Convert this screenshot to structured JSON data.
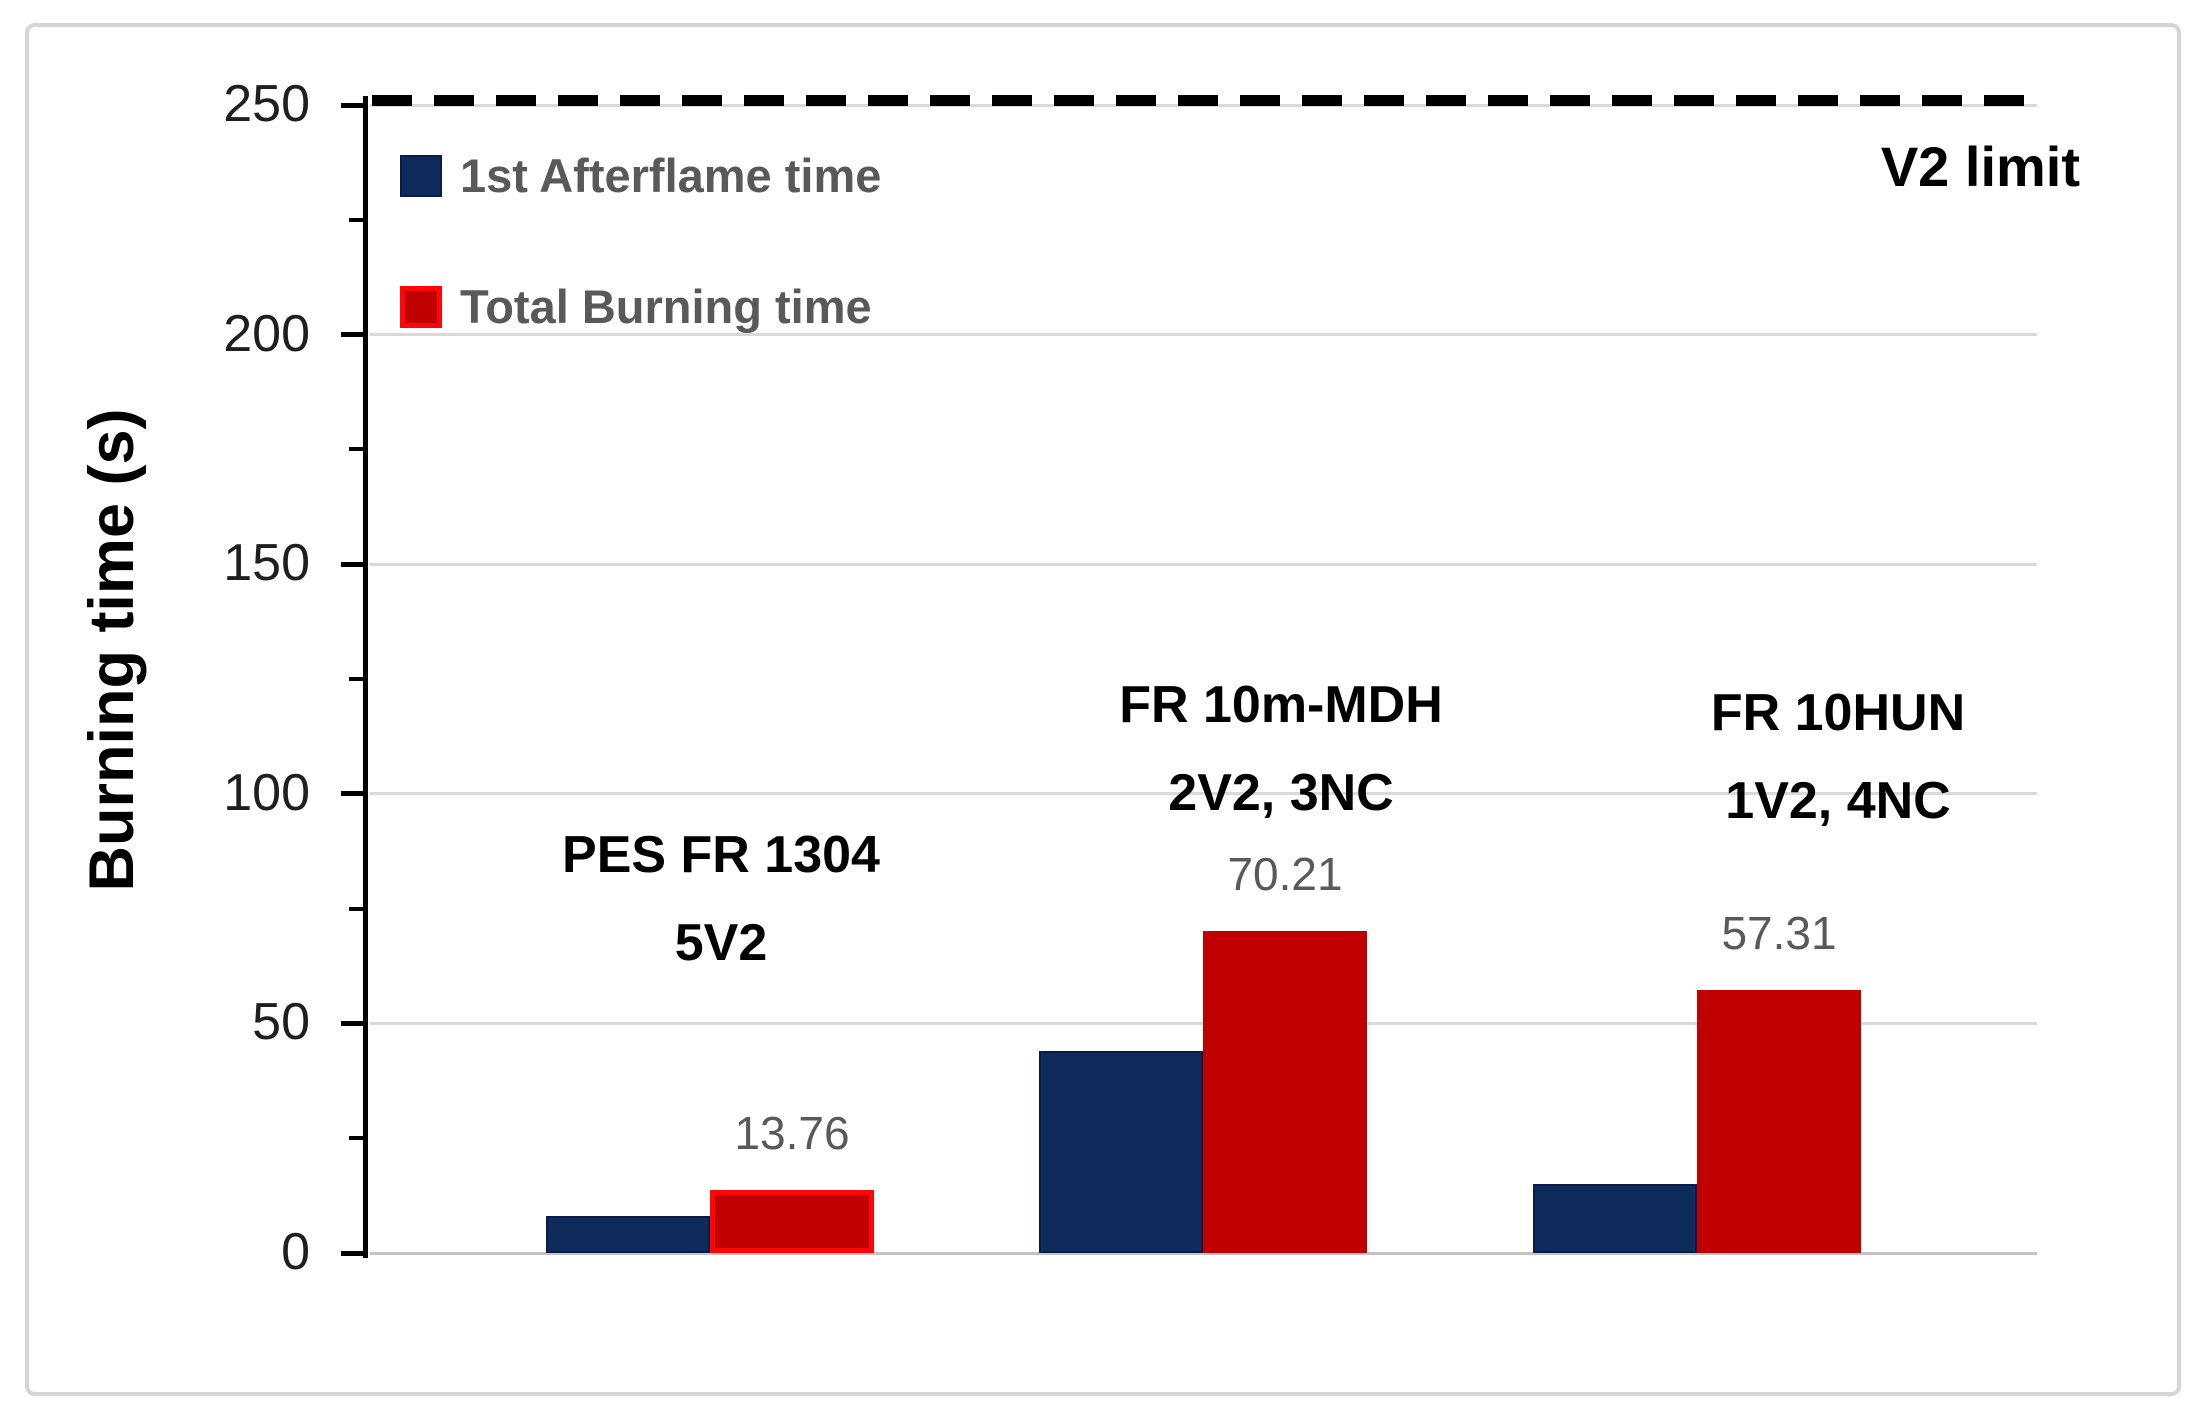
{
  "figure": {
    "background": "#ffffff",
    "frame_border_color": "#d5d5d5"
  },
  "chart_data": {
    "type": "bar",
    "title": "",
    "xlabel": "",
    "ylabel": "Burning time (s)",
    "ylim": [
      0,
      250
    ],
    "ytick_interval": 50,
    "minor_tick_interval": 25,
    "grid": "horizontal-major",
    "legend_position": "top-left-inside",
    "yticks": [
      "0",
      "50",
      "100",
      "150",
      "200",
      "250"
    ],
    "categories": [
      {
        "line1": "PES FR 1304",
        "line2": "5V2"
      },
      {
        "line1": "FR 10m-MDH",
        "line2": "2V2, 3NC"
      },
      {
        "line1": "FR 10HUN",
        "line2": "1V2, 4NC"
      }
    ],
    "series": [
      {
        "name": "1st Afterflame time",
        "color": "#0f2b5c",
        "values": [
          8,
          44,
          15
        ],
        "labels": [
          "",
          "",
          ""
        ]
      },
      {
        "name": "Total Burning time",
        "color": "#c00000",
        "highlight_border_color": "#fe0606",
        "values": [
          13.76,
          70.21,
          57.31
        ],
        "labels": [
          "13.76",
          "70.21",
          "57.31"
        ]
      }
    ],
    "reference_line": {
      "label": "V2 limit",
      "value": 250,
      "style": "dashed",
      "color": "#000000"
    },
    "colors": {
      "gridline": "#d9d9d9",
      "axis": "#000000",
      "value_label_text": "#595959",
      "legend_text": "#595959",
      "category_text": "#000000"
    }
  }
}
